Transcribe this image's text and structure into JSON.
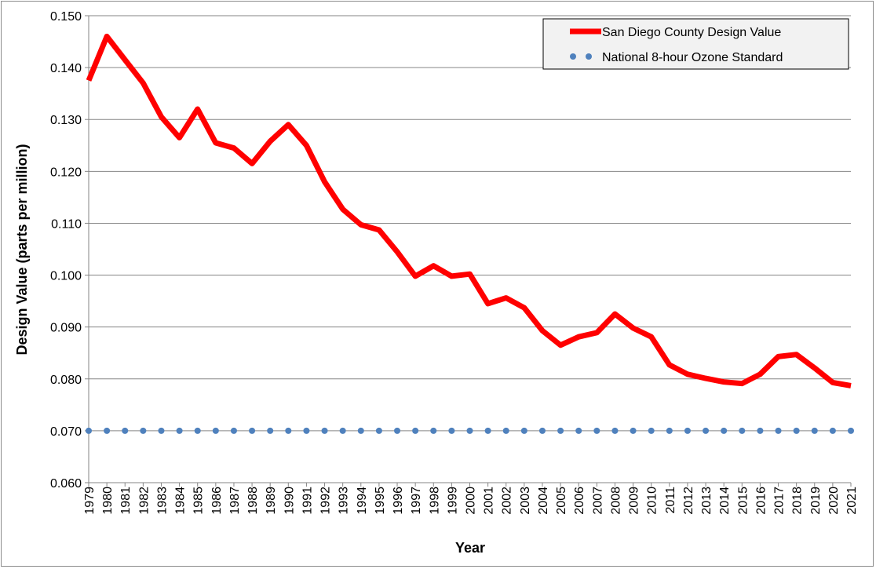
{
  "chart_data": {
    "type": "line",
    "title": "",
    "xlabel": "Year",
    "ylabel": "Design Value (parts per million)",
    "ylim": [
      0.06,
      0.15
    ],
    "y_ticks": [
      "0.060",
      "0.070",
      "0.080",
      "0.090",
      "0.100",
      "0.110",
      "0.120",
      "0.130",
      "0.140",
      "0.150"
    ],
    "grid": true,
    "legend_position": "top-right",
    "x": [
      "1979",
      "1980",
      "1981",
      "1982",
      "1983",
      "1984",
      "1985",
      "1986",
      "1987",
      "1988",
      "1989",
      "1990",
      "1991",
      "1992",
      "1993",
      "1994",
      "1995",
      "1996",
      "1997",
      "1998",
      "1999",
      "2000",
      "2001",
      "2002",
      "2003",
      "2004",
      "2005",
      "2006",
      "2007",
      "2008",
      "2009",
      "2010",
      "2011",
      "2012",
      "2013",
      "2014",
      "2015",
      "2016",
      "2017",
      "2018",
      "2019",
      "2020",
      "2021"
    ],
    "series": [
      {
        "name": "San Diego County Design Value",
        "color": "#ff0000",
        "style": "solid",
        "values": [
          0.1375,
          0.146,
          0.1415,
          0.137,
          0.1305,
          0.1265,
          0.132,
          0.1255,
          0.1245,
          0.1215,
          0.1258,
          0.129,
          0.125,
          0.118,
          0.1127,
          0.1097,
          0.1087,
          0.1045,
          0.0998,
          0.1018,
          0.0998,
          0.1002,
          0.0945,
          0.0956,
          0.0937,
          0.0893,
          0.0865,
          0.0881,
          0.0889,
          0.0925,
          0.0898,
          0.0881,
          0.0827,
          0.0809,
          0.0801,
          0.0794,
          0.0791,
          0.0809,
          0.0843,
          0.0847,
          0.0821,
          0.0793,
          0.0787
        ]
      },
      {
        "name": "National 8-hour Ozone Standard",
        "color": "#4f81bd",
        "style": "dotted",
        "values": [
          0.07,
          0.07,
          0.07,
          0.07,
          0.07,
          0.07,
          0.07,
          0.07,
          0.07,
          0.07,
          0.07,
          0.07,
          0.07,
          0.07,
          0.07,
          0.07,
          0.07,
          0.07,
          0.07,
          0.07,
          0.07,
          0.07,
          0.07,
          0.07,
          0.07,
          0.07,
          0.07,
          0.07,
          0.07,
          0.07,
          0.07,
          0.07,
          0.07,
          0.07,
          0.07,
          0.07,
          0.07,
          0.07,
          0.07,
          0.07,
          0.07,
          0.07,
          0.07
        ]
      }
    ]
  }
}
